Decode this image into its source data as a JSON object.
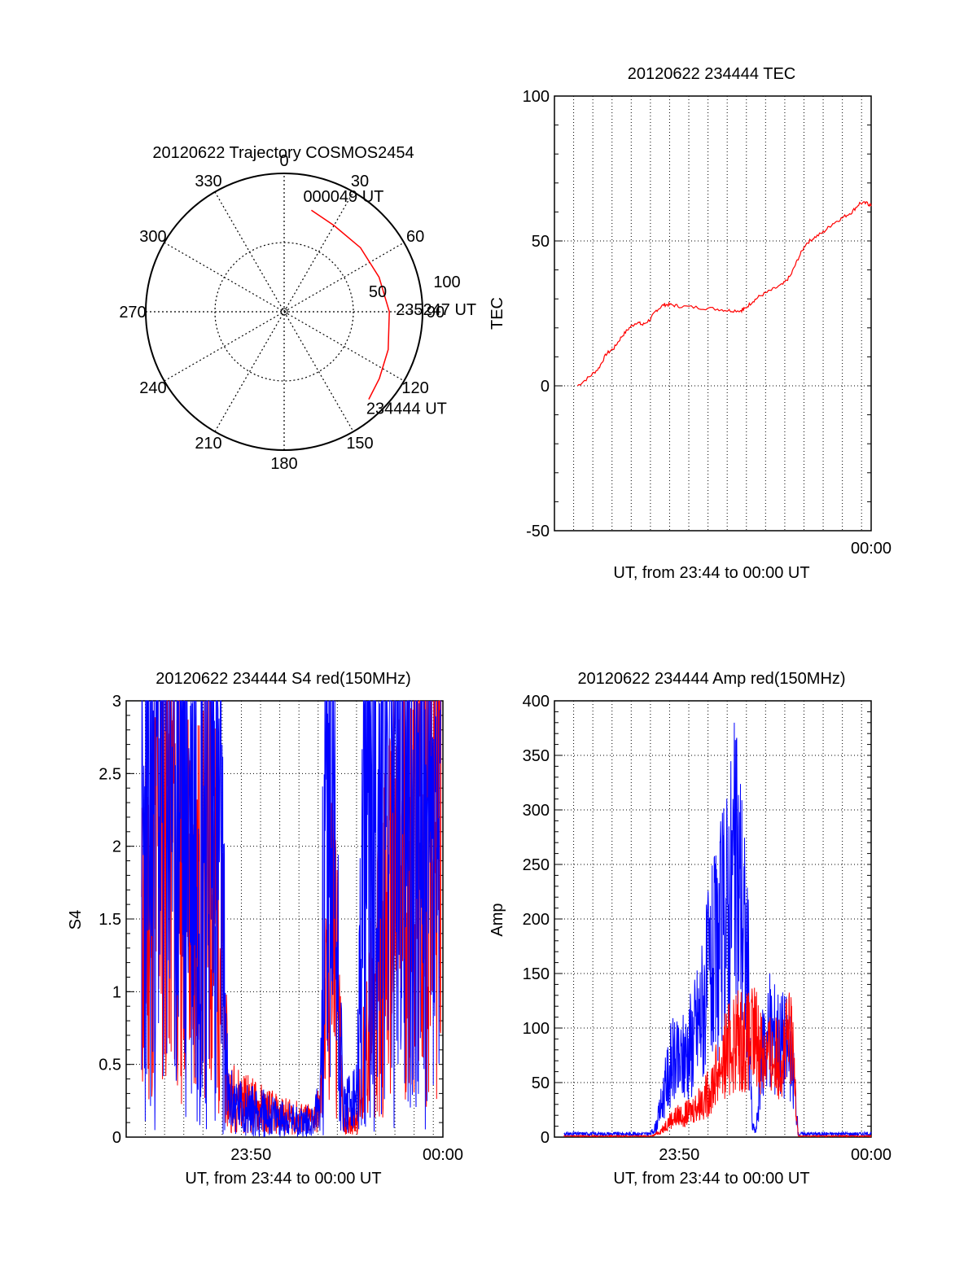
{
  "chart_data": [
    {
      "type": "polar",
      "title": "20120622 Trajectory COSMOS2454",
      "azimuth_labels": [
        "0",
        "30",
        "60",
        "90",
        "120",
        "150",
        "180",
        "210",
        "240",
        "270",
        "300",
        "330"
      ],
      "elevation_rings": [
        100,
        50
      ],
      "ring_labels": [
        "100",
        "50"
      ],
      "trajectory": {
        "color": "#ff0000",
        "points": [
          {
            "az": 15,
            "el_offset": 76
          },
          {
            "az": 30,
            "el_offset": 72
          },
          {
            "az": 50,
            "el_offset": 72
          },
          {
            "az": 70,
            "el_offset": 73
          },
          {
            "az": 90,
            "el_offset": 76
          },
          {
            "az": 110,
            "el_offset": 80
          },
          {
            "az": 125,
            "el_offset": 84
          },
          {
            "az": 136,
            "el_offset": 88
          }
        ],
        "labels": [
          {
            "text": "000049 UT",
            "az": 15
          },
          {
            "text": "235247 UT",
            "az": 90
          },
          {
            "text": "234444 UT",
            "az": 136
          }
        ]
      }
    },
    {
      "type": "line",
      "title": "20120622 234444 TEC",
      "xlabel": "UT, from 23:44 to 00:00 UT",
      "ylabel": "TEC",
      "xlim": [
        -0.5,
        16
      ],
      "ylim": [
        -50,
        100
      ],
      "yticks": [
        "100",
        "50",
        "0",
        "-50"
      ],
      "ytick_values": [
        100,
        50,
        0,
        -50
      ],
      "xticks": [
        "00:00"
      ],
      "xtick_values": [
        16
      ],
      "grid_x": [
        0.5,
        1.5,
        2.5,
        3.5,
        4.5,
        5.5,
        6.5,
        7.5,
        8.5,
        9.5,
        10.5,
        11.5,
        12.5,
        13.5,
        14.5,
        15.5
      ],
      "series": [
        {
          "color": "#ff0000",
          "x": [
            0.7,
            1.3,
            1.8,
            2.2,
            2.6,
            3.0,
            3.4,
            3.8,
            4.1,
            4.5,
            4.8,
            5.2,
            5.5,
            6.0,
            7.0,
            8.0,
            8.6,
            9.2,
            9.4,
            9.8,
            10.2,
            10.8,
            11.4,
            11.8,
            12.2,
            12.6,
            13.0,
            13.5,
            14.0,
            14.5,
            15.0,
            15.4,
            15.8,
            16.0
          ],
          "y": [
            0,
            3,
            6,
            11,
            13,
            17,
            20,
            22,
            21,
            23,
            26,
            28,
            28,
            27.5,
            27,
            26.5,
            26,
            26,
            26.5,
            29,
            31,
            33,
            35,
            38,
            44,
            49,
            51,
            53,
            56,
            58,
            60,
            63,
            63,
            62
          ]
        }
      ]
    },
    {
      "type": "line",
      "title": "20120622 234444 S4 red(150MHz)",
      "xlabel": "UT, from 23:44 to 00:00 UT",
      "ylabel": "S4",
      "xlim": [
        -0.5,
        16
      ],
      "ylim": [
        0,
        3
      ],
      "yticks": [
        "3",
        "2.5",
        "2",
        "1.5",
        "1",
        "0.5",
        "0"
      ],
      "ytick_values": [
        3,
        2.5,
        2,
        1.5,
        1,
        0.5,
        0
      ],
      "xticks": [
        "23:50",
        "00:00"
      ],
      "xtick_values": [
        6,
        16
      ],
      "grid_x": [
        0.5,
        1.5,
        2.5,
        3.5,
        4.5,
        5.5,
        6.5,
        7.5,
        8.5,
        9.5,
        10.5,
        11.5,
        12.5,
        13.5,
        14.5,
        15.5
      ],
      "series": [
        {
          "name": "red",
          "color": "#ff0000",
          "profile_x": [
            0.3,
            0.8,
            1.5,
            2.2,
            3.0,
            3.8,
            4.4,
            4.8,
            5.5,
            6.5,
            7.5,
            8.5,
            9.2,
            9.6,
            9.9,
            10.3,
            10.8,
            11.5,
            12.0,
            12.6,
            13.2,
            13.8,
            14.4,
            15.0,
            15.5,
            15.9
          ],
          "profile_y": [
            1.3,
            1.6,
            2.6,
            2.0,
            1.5,
            1.8,
            1.4,
            0.3,
            0.25,
            0.2,
            0.15,
            0.13,
            0.12,
            0.2,
            0.8,
            1.6,
            0.12,
            0.14,
            0.6,
            1.1,
            1.5,
            1.8,
            2.0,
            2.0,
            2.2,
            2.4
          ]
        },
        {
          "name": "blue",
          "color": "#0000ff",
          "profile_x": [
            0.3,
            0.8,
            1.5,
            2.2,
            3.0,
            3.8,
            4.4,
            4.8,
            5.5,
            6.5,
            7.5,
            8.5,
            9.2,
            9.6,
            9.9,
            10.3,
            10.8,
            11.5,
            12.0,
            12.6,
            13.2,
            13.8,
            14.4,
            15.0,
            15.5,
            15.9
          ],
          "profile_y": [
            1.8,
            2.2,
            2.8,
            2.6,
            2.2,
            2.5,
            2.0,
            0.25,
            0.2,
            0.17,
            0.13,
            0.11,
            0.11,
            0.25,
            2.5,
            2.0,
            0.2,
            0.25,
            2.2,
            2.5,
            2.6,
            2.4,
            2.2,
            2.0,
            1.9,
            1.8
          ]
        }
      ]
    },
    {
      "type": "line",
      "title": "20120622 234444 Amp red(150MHz)",
      "xlabel": "UT, from 23:44 to 00:00 UT",
      "ylabel": "Amp",
      "xlim": [
        -0.5,
        16
      ],
      "ylim": [
        0,
        400
      ],
      "yticks": [
        "400",
        "350",
        "300",
        "250",
        "200",
        "150",
        "100",
        "50",
        "0"
      ],
      "ytick_values": [
        400,
        350,
        300,
        250,
        200,
        150,
        100,
        50,
        0
      ],
      "xticks": [
        "23:50",
        "00:00"
      ],
      "xtick_values": [
        6,
        16
      ],
      "grid_x": [
        0.5,
        1.5,
        2.5,
        3.5,
        4.5,
        5.5,
        6.5,
        7.5,
        8.5,
        9.5,
        10.5,
        11.5,
        12.5,
        13.5,
        14.5,
        15.5
      ],
      "series": [
        {
          "name": "blue",
          "color": "#0000ff",
          "profile_x": [
            0.0,
            4.5,
            4.8,
            5.2,
            5.6,
            6.0,
            6.4,
            6.8,
            7.2,
            7.6,
            8.0,
            8.4,
            8.8,
            9.2,
            9.6,
            9.8,
            10.0,
            10.4,
            10.8,
            11.2,
            11.6,
            12.0,
            12.2,
            16.0
          ],
          "profile_y": [
            3,
            3,
            10,
            40,
            70,
            65,
            80,
            95,
            120,
            150,
            170,
            200,
            240,
            230,
            140,
            10,
            5,
            90,
            95,
            90,
            85,
            50,
            3,
            3
          ]
        },
        {
          "name": "red",
          "color": "#ff0000",
          "profile_x": [
            0.0,
            4.6,
            5.0,
            5.5,
            6.0,
            6.5,
            7.0,
            7.5,
            8.0,
            8.5,
            9.0,
            9.5,
            10.0,
            10.5,
            11.0,
            11.5,
            11.8,
            12.0,
            12.2,
            16.0
          ],
          "profile_y": [
            1,
            1,
            5,
            15,
            20,
            22,
            30,
            40,
            60,
            80,
            90,
            85,
            90,
            75,
            70,
            80,
            90,
            60,
            1,
            1
          ]
        }
      ]
    }
  ]
}
